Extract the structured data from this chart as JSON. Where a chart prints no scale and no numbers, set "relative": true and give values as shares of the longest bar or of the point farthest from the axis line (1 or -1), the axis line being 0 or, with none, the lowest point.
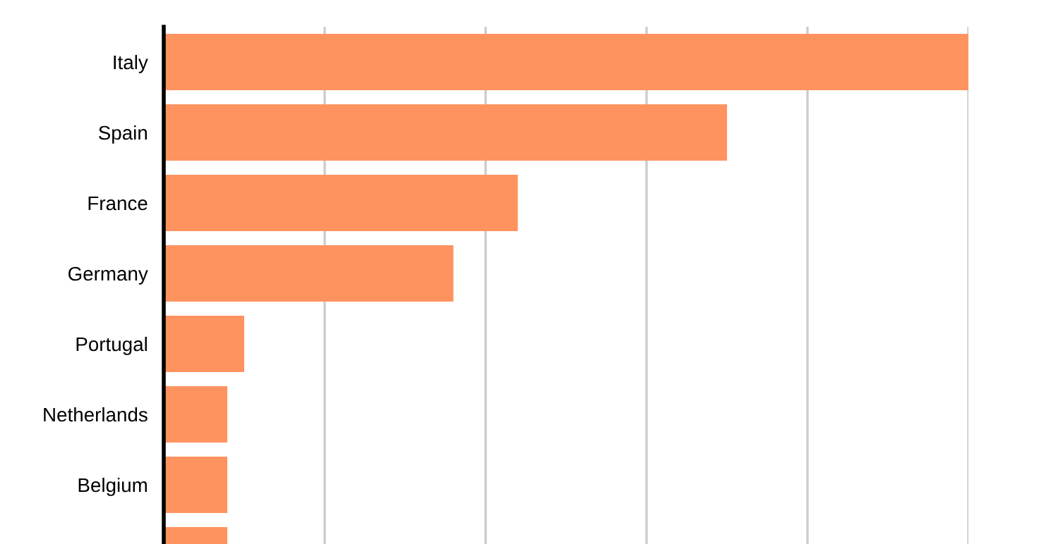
{
  "chart_data": {
    "type": "bar",
    "orientation": "horizontal",
    "relative": true,
    "categories": [
      "Italy",
      "Spain",
      "France",
      "Germany",
      "Portugal",
      "Netherlands",
      "Belgium",
      null
    ],
    "values": [
      1,
      0.7,
      0.44,
      0.36,
      0.1,
      0.079,
      0.079,
      0.079
    ],
    "color": "#ff9360",
    "grid": "x",
    "legend": false
  }
}
